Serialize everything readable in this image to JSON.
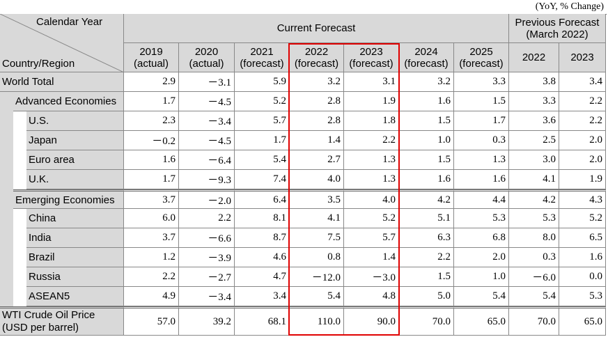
{
  "note": "(YoY, % Change)",
  "header": {
    "row_label_top": "Calendar Year",
    "row_label_bottom": "Country/Region",
    "current": "Current Forecast",
    "previous": [
      "Previous Forecast",
      "(March 2022)"
    ],
    "current_columns": [
      [
        "2019",
        "(actual)"
      ],
      [
        "2020",
        "(actual)"
      ],
      [
        "2021",
        "(forecast)"
      ],
      [
        "2022",
        "(forecast)"
      ],
      [
        "2023",
        "(forecast)"
      ],
      [
        "2024",
        "(forecast)"
      ],
      [
        "2025",
        "(forecast)"
      ]
    ],
    "previous_columns": [
      "2022",
      "2023"
    ]
  },
  "rows": [
    {
      "label": [
        "World Total"
      ],
      "level": 0,
      "values": [
        "2.9",
        "－3.1",
        "5.9",
        "3.2",
        "3.1",
        "3.2",
        "3.3",
        "3.8",
        "3.4"
      ]
    },
    {
      "label": [
        "Advanced Economies"
      ],
      "level": 1,
      "values": [
        "1.7",
        "－4.5",
        "5.2",
        "2.8",
        "1.9",
        "1.6",
        "1.5",
        "3.3",
        "2.2"
      ]
    },
    {
      "label": [
        "U.S."
      ],
      "level": 2,
      "values": [
        "2.3",
        "－3.4",
        "5.7",
        "2.8",
        "1.8",
        "1.5",
        "1.7",
        "3.6",
        "2.2"
      ]
    },
    {
      "label": [
        "Japan"
      ],
      "level": 2,
      "values": [
        "－0.2",
        "－4.5",
        "1.7",
        "1.4",
        "2.2",
        "1.0",
        "0.3",
        "2.5",
        "2.0"
      ]
    },
    {
      "label": [
        "Euro area"
      ],
      "level": 2,
      "values": [
        "1.6",
        "－6.4",
        "5.4",
        "2.7",
        "1.3",
        "1.5",
        "1.3",
        "3.0",
        "2.0"
      ]
    },
    {
      "label": [
        "U.K."
      ],
      "level": 2,
      "values": [
        "1.7",
        "－9.3",
        "7.4",
        "4.0",
        "1.3",
        "1.6",
        "1.6",
        "4.1",
        "1.9"
      ]
    },
    {
      "label": [
        "Emerging Economies"
      ],
      "level": 1,
      "values": [
        "3.7",
        "－2.0",
        "6.4",
        "3.5",
        "4.0",
        "4.2",
        "4.4",
        "4.2",
        "4.3"
      ]
    },
    {
      "label": [
        "China"
      ],
      "level": 2,
      "values": [
        "6.0",
        "2.2",
        "8.1",
        "4.1",
        "5.2",
        "5.1",
        "5.3",
        "5.3",
        "5.2"
      ]
    },
    {
      "label": [
        "India"
      ],
      "level": 2,
      "values": [
        "3.7",
        "－6.6",
        "8.7",
        "7.5",
        "5.7",
        "6.3",
        "6.8",
        "8.0",
        "6.5"
      ]
    },
    {
      "label": [
        "Brazil"
      ],
      "level": 2,
      "values": [
        "1.2",
        "－3.9",
        "4.6",
        "0.8",
        "1.4",
        "2.2",
        "2.0",
        "0.3",
        "1.6"
      ]
    },
    {
      "label": [
        "Russia"
      ],
      "level": 2,
      "values": [
        "2.2",
        "－2.7",
        "4.7",
        "－12.0",
        "－3.0",
        "1.5",
        "1.0",
        "－6.0",
        "0.0"
      ]
    },
    {
      "label": [
        "ASEAN5"
      ],
      "level": 2,
      "values": [
        "4.9",
        "－3.4",
        "3.4",
        "5.4",
        "4.8",
        "5.0",
        "5.4",
        "5.4",
        "5.3"
      ]
    },
    {
      "label": [
        "WTI Crude Oil Price",
        "(USD per barrel)"
      ],
      "level": 0,
      "values": [
        "57.0",
        "39.2",
        "68.1",
        "110.0",
        "90.0",
        "70.0",
        "65.0",
        "70.0",
        "65.0"
      ]
    }
  ]
}
